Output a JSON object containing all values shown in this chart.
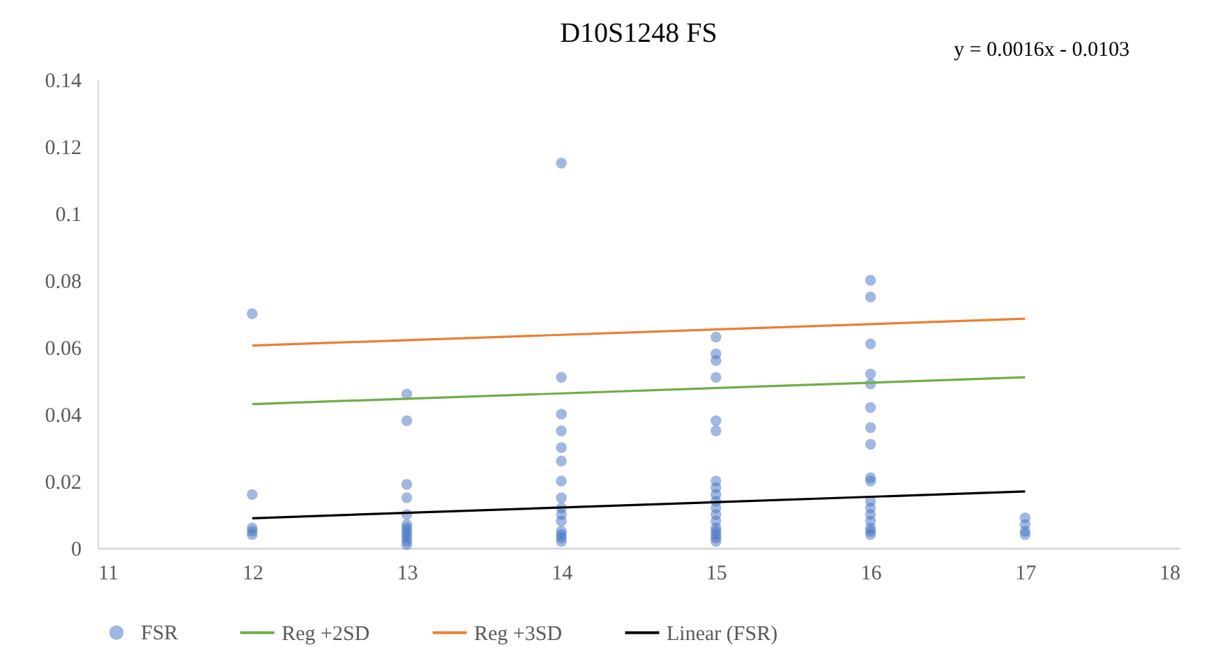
{
  "chart_data": {
    "type": "scatter",
    "title": "D10S1248 FS",
    "annotations": [
      "y = 0.0016x  - 0.0103"
    ],
    "xlim": [
      11,
      18
    ],
    "xticks": [
      11,
      12,
      13,
      14,
      15,
      16,
      17,
      18
    ],
    "ylim": [
      0,
      0.14
    ],
    "yticks": [
      0,
      0.02,
      0.04,
      0.06,
      0.08,
      0.1,
      0.12,
      0.14
    ],
    "grid": false,
    "legend": "bottom",
    "series": [
      {
        "name": "FSR",
        "marker": "circle",
        "color": "#4472c4",
        "x": [
          12,
          12,
          12,
          12,
          12,
          13,
          13,
          13,
          13,
          13,
          13,
          13,
          13,
          13,
          13,
          13,
          13,
          14,
          14,
          14,
          14,
          14,
          14,
          14,
          14,
          14,
          14,
          14,
          14,
          14,
          14,
          14,
          15,
          15,
          15,
          15,
          15,
          15,
          15,
          15,
          15,
          15,
          15,
          15,
          15,
          15,
          15,
          15,
          15,
          15,
          16,
          16,
          16,
          16,
          16,
          16,
          16,
          16,
          16,
          16,
          16,
          16,
          16,
          16,
          16,
          16,
          16,
          17,
          17,
          17,
          17
        ],
        "values": [
          0.07,
          0.016,
          0.006,
          0.005,
          0.004,
          0.046,
          0.038,
          0.019,
          0.015,
          0.01,
          0.007,
          0.006,
          0.005,
          0.004,
          0.003,
          0.002,
          0.001,
          0.115,
          0.051,
          0.04,
          0.035,
          0.03,
          0.026,
          0.02,
          0.015,
          0.012,
          0.01,
          0.008,
          0.005,
          0.004,
          0.003,
          0.002,
          0.063,
          0.058,
          0.056,
          0.051,
          0.038,
          0.035,
          0.02,
          0.018,
          0.016,
          0.014,
          0.012,
          0.01,
          0.008,
          0.006,
          0.005,
          0.004,
          0.003,
          0.002,
          0.08,
          0.075,
          0.061,
          0.052,
          0.049,
          0.042,
          0.036,
          0.031,
          0.021,
          0.02,
          0.014,
          0.012,
          0.01,
          0.008,
          0.006,
          0.005,
          0.004,
          0.009,
          0.007,
          0.005,
          0.004
        ]
      },
      {
        "name": "Reg +2SD",
        "type": "line",
        "marker": "none",
        "color": "#70ad47",
        "x": [
          12,
          17
        ],
        "values": [
          0.043,
          0.051
        ]
      },
      {
        "name": "Reg +3SD",
        "type": "line",
        "marker": "none",
        "color": "#ed7d31",
        "x": [
          12,
          17
        ],
        "values": [
          0.0605,
          0.0685
        ]
      },
      {
        "name": "Linear (FSR)",
        "type": "line",
        "marker": "none",
        "color": "#000000",
        "x": [
          12,
          17
        ],
        "values": [
          0.0089,
          0.0169
        ]
      }
    ]
  }
}
